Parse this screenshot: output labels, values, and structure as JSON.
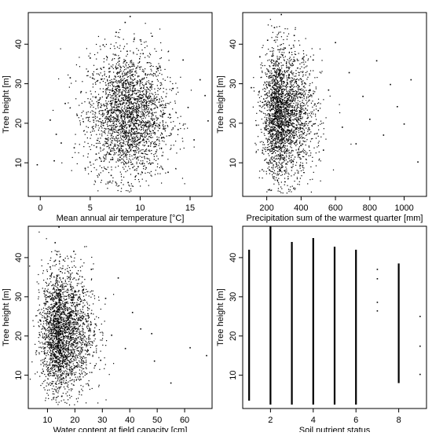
{
  "chart_data": [
    {
      "type": "scatter",
      "xlabel": "Mean annual air temperature [°C]",
      "ylabel": "Tree height [m]",
      "xlim": [
        -1.2,
        17.2
      ],
      "ylim": [
        1.5,
        48
      ],
      "xticks": [
        0,
        5,
        10,
        15
      ],
      "yticks": [
        10,
        20,
        30,
        40
      ],
      "grid": false,
      "point_color": "#000000",
      "points": [
        [
          -0.3,
          9.5
        ],
        [
          1.0,
          20.8
        ],
        [
          1.4,
          10.5
        ],
        [
          1.6,
          17.2
        ],
        [
          2.1,
          15.0
        ],
        [
          2.5,
          25.0
        ],
        [
          3.0,
          31.5
        ],
        [
          3.4,
          13.8
        ],
        [
          3.7,
          22.0
        ],
        [
          4.1,
          28.0
        ],
        [
          4.5,
          8.6
        ],
        [
          5.0,
          36.5
        ],
        [
          5.3,
          18.6
        ],
        [
          5.6,
          12.2
        ],
        [
          6.0,
          26.4
        ],
        [
          6.3,
          39.8
        ],
        [
          6.6,
          16.0
        ],
        [
          6.9,
          33.0
        ],
        [
          7.1,
          6.8
        ],
        [
          7.4,
          21.3
        ],
        [
          7.6,
          43.0
        ],
        [
          7.8,
          29.2
        ],
        [
          8.0,
          11.4
        ],
        [
          8.2,
          24.8
        ],
        [
          8.4,
          35.6
        ],
        [
          8.5,
          45.5
        ],
        [
          8.6,
          18.0
        ],
        [
          8.7,
          38.2
        ],
        [
          8.8,
          5.0
        ],
        [
          8.9,
          27.3
        ],
        [
          9.0,
          47.0
        ],
        [
          9.1,
          14.6
        ],
        [
          9.2,
          32.1
        ],
        [
          9.4,
          41.2
        ],
        [
          9.6,
          20.0
        ],
        [
          9.8,
          9.0
        ],
        [
          10.0,
          30.5
        ],
        [
          10.3,
          37.6
        ],
        [
          10.6,
          15.4
        ],
        [
          10.9,
          25.6
        ],
        [
          11.2,
          42.0
        ],
        [
          11.6,
          12.8
        ],
        [
          12.0,
          34.1
        ],
        [
          12.4,
          22.4
        ],
        [
          12.8,
          7.6
        ],
        [
          13.3,
          28.8
        ],
        [
          13.8,
          18.4
        ],
        [
          14.3,
          36.0
        ],
        [
          14.8,
          24.0
        ],
        [
          15.4,
          15.8
        ],
        [
          16.0,
          31.0
        ],
        [
          16.5,
          27.0
        ],
        [
          16.8,
          20.6
        ]
      ]
    },
    {
      "type": "scatter",
      "xlabel": "Precipitation sum of the warmest quarter [mm]",
      "ylabel": "Tree height [m]",
      "xlim": [
        60,
        1130
      ],
      "ylim": [
        1.5,
        48
      ],
      "xticks": [
        200,
        400,
        600,
        800,
        1000
      ],
      "yticks": [
        10,
        20,
        30,
        40
      ],
      "grid": false,
      "point_color": "#000000",
      "points": [
        [
          110,
          29.0
        ],
        [
          140,
          19.5
        ],
        [
          160,
          36.8
        ],
        [
          175,
          12.5
        ],
        [
          190,
          25.5
        ],
        [
          205,
          41.0
        ],
        [
          215,
          8.2
        ],
        [
          225,
          31.6
        ],
        [
          235,
          17.4
        ],
        [
          245,
          44.2
        ],
        [
          255,
          22.8
        ],
        [
          262,
          5.6
        ],
        [
          270,
          35.2
        ],
        [
          278,
          14.0
        ],
        [
          285,
          47.5
        ],
        [
          292,
          27.6
        ],
        [
          300,
          10.8
        ],
        [
          308,
          39.0
        ],
        [
          318,
          20.4
        ],
        [
          330,
          33.8
        ],
        [
          345,
          15.6
        ],
        [
          360,
          42.2
        ],
        [
          378,
          24.6
        ],
        [
          395,
          9.4
        ],
        [
          420,
          30.2
        ],
        [
          445,
          18.8
        ],
        [
          470,
          36.0
        ],
        [
          500,
          23.2
        ],
        [
          530,
          13.2
        ],
        [
          560,
          28.4
        ],
        [
          600,
          40.4
        ],
        [
          640,
          19.0
        ],
        [
          680,
          32.8
        ],
        [
          720,
          14.8
        ],
        [
          760,
          26.8
        ],
        [
          800,
          21.0
        ],
        [
          840,
          35.8
        ],
        [
          880,
          17.0
        ],
        [
          920,
          29.8
        ],
        [
          960,
          24.2
        ],
        [
          1000,
          19.8
        ],
        [
          1040,
          31.0
        ],
        [
          1080,
          10.2
        ]
      ]
    },
    {
      "type": "scatter",
      "xlabel": "Water content at field capacity [cm]",
      "ylabel": "Tree height [m]",
      "xlim": [
        3,
        70
      ],
      "ylim": [
        1.5,
        48
      ],
      "xticks": [
        10,
        20,
        30,
        40,
        50,
        60
      ],
      "yticks": [
        10,
        20,
        30,
        40
      ],
      "grid": false,
      "point_color": "#000000",
      "points": [
        [
          6.0,
          16.2
        ],
        [
          7.5,
          23.8
        ],
        [
          8.5,
          11.0
        ],
        [
          9.5,
          30.4
        ],
        [
          10.3,
          18.2
        ],
        [
          11.0,
          37.6
        ],
        [
          11.6,
          7.8
        ],
        [
          12.2,
          26.2
        ],
        [
          12.8,
          43.8
        ],
        [
          13.3,
          14.4
        ],
        [
          13.8,
          33.0
        ],
        [
          14.2,
          47.8
        ],
        [
          14.7,
          21.4
        ],
        [
          15.2,
          4.6
        ],
        [
          15.8,
          39.4
        ],
        [
          16.4,
          28.0
        ],
        [
          17.0,
          12.6
        ],
        [
          17.8,
          35.0
        ],
        [
          18.6,
          19.6
        ],
        [
          19.6,
          41.6
        ],
        [
          20.6,
          25.2
        ],
        [
          21.8,
          9.6
        ],
        [
          23.0,
          31.8
        ],
        [
          24.4,
          17.6
        ],
        [
          26.0,
          37.0
        ],
        [
          27.6,
          23.0
        ],
        [
          29.4,
          13.8
        ],
        [
          31.2,
          29.6
        ],
        [
          33.4,
          20.2
        ],
        [
          35.8,
          34.8
        ],
        [
          38.4,
          16.8
        ],
        [
          41.0,
          26.0
        ],
        [
          44.0,
          21.8
        ],
        [
          48.0,
          20.6
        ],
        [
          49.0,
          13.6
        ],
        [
          55.0,
          8.0
        ],
        [
          62.0,
          17.0
        ],
        [
          68.0,
          15.0
        ]
      ]
    },
    {
      "type": "scatter",
      "xlabel": "Soil nutrient status",
      "ylabel": "Tree height [m]",
      "xlim": [
        0.7,
        9.3
      ],
      "ylim": [
        1.5,
        48
      ],
      "xticks": [
        2,
        4,
        6,
        8
      ],
      "yticks": [
        10,
        20,
        30,
        40
      ],
      "grid": false,
      "point_color": "#000000",
      "category_ranges": [
        [
          1,
          3.5,
          42.0
        ],
        [
          2,
          2.5,
          48.0
        ],
        [
          3,
          2.5,
          44.0
        ],
        [
          4,
          2.5,
          45.0
        ],
        [
          5,
          2.5,
          42.8
        ],
        [
          6,
          2.5,
          42.0
        ],
        [
          8,
          8.0,
          38.5
        ]
      ],
      "points": [
        [
          7,
          37.0
        ],
        [
          7,
          34.6
        ],
        [
          7,
          28.6
        ],
        [
          7,
          26.4
        ],
        [
          9,
          25.0
        ],
        [
          9,
          17.4
        ],
        [
          9,
          10.2
        ]
      ]
    }
  ]
}
